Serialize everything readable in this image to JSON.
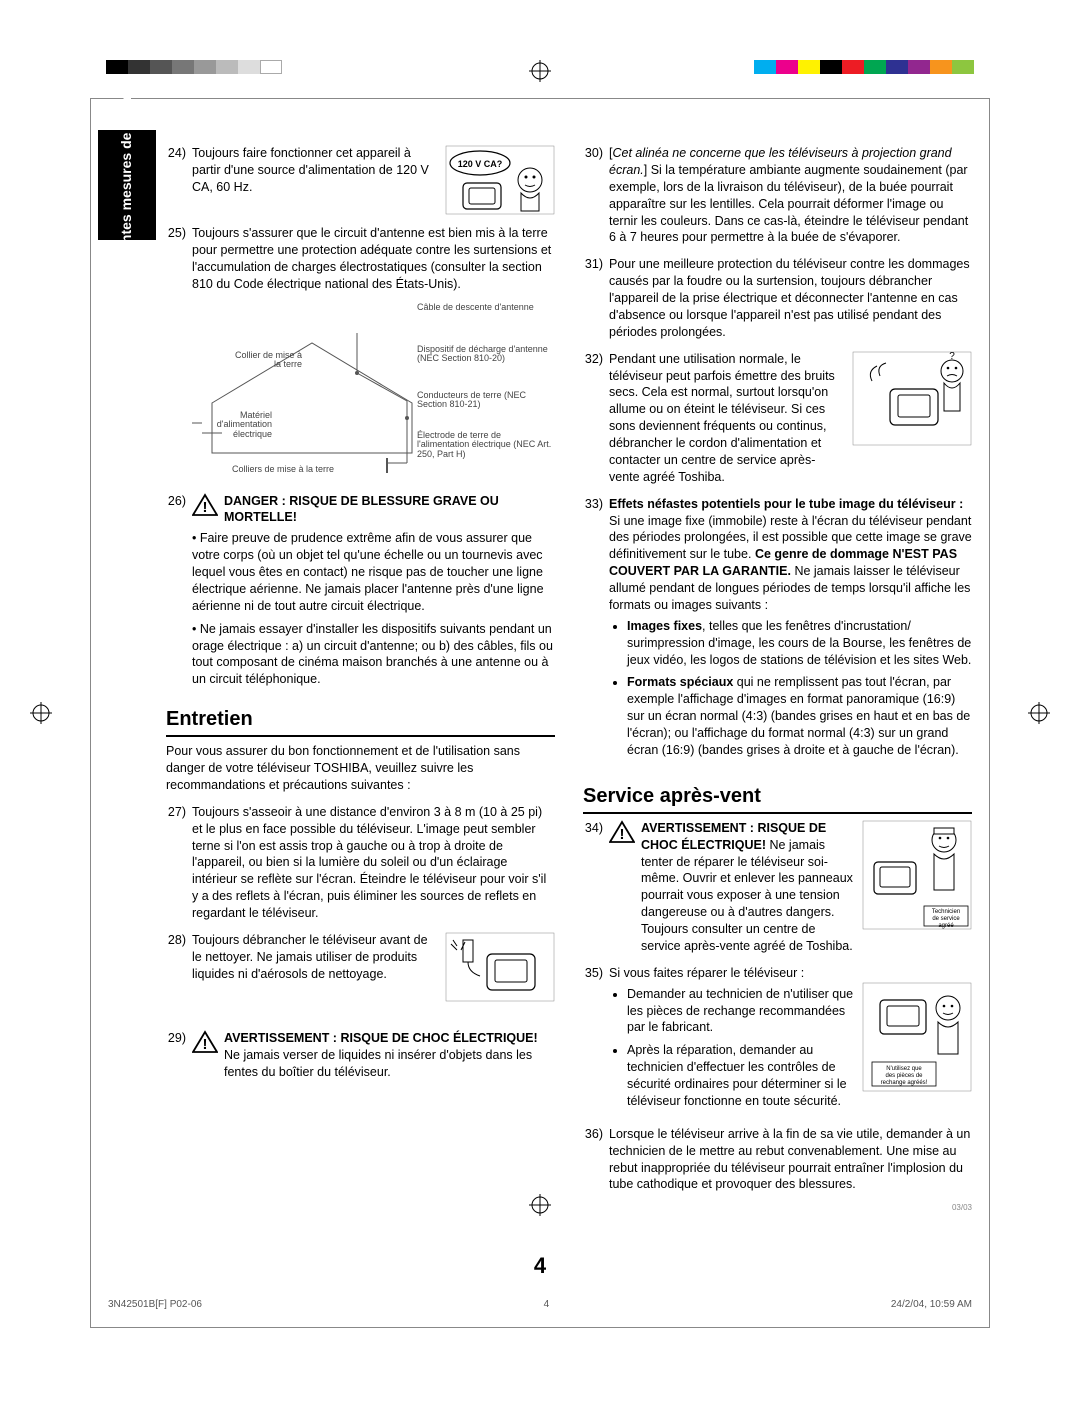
{
  "colorbar_left": [
    "#000000",
    "#333333",
    "#555555",
    "#777777",
    "#999999",
    "#bbbbbb",
    "#dddddd",
    "#ffffff"
  ],
  "colorbar_right": [
    "#00aeef",
    "#ec008c",
    "#fff200",
    "#000000",
    "#ed1c24",
    "#00a651",
    "#2e3192",
    "#92278f",
    "#f7941d",
    "#8dc63f"
  ],
  "tab": "Importantes\nmesures de\nsécurité",
  "items": {
    "i24": {
      "text": "Toujours faire fonctionner cet appareil à partir d'une source d'alimentation de 120 V CA, 60 Hz."
    },
    "i25": {
      "text": "Toujours s'assurer que le circuit d'antenne est bien mis à la terre pour permettre une protection adéquate contre les surtensions et l'accumulation de charges électrostatiques (consulter la section 810 du Code électrique national des États-Unis)."
    },
    "i26": {
      "heading": "DANGER : RISQUE DE BLESSURE GRAVE OU MORTELLE!",
      "p1": "• Faire preuve de prudence extrême afin de vous assurer que votre corps (où un objet tel qu'une échelle ou un tournevis avec lequel vous êtes en contact) ne risque pas de toucher une ligne électrique aérienne. Ne jamais placer l'antenne près d'une ligne aérienne ni de tout autre circuit électrique.",
      "p2": "• Ne jamais essayer d'installer les dispositifs suivants pendant un orage électrique : a) un circuit d'antenne; ou b) des câbles, fils ou tout composant de cinéma maison branchés à une antenne ou à un circuit téléphonique."
    },
    "i27": {
      "text": "Toujours s'asseoir à une distance d'environ 3 à 8 m (10 à 25 pi) et le plus en face possible du téléviseur. L'image peut sembler terne si l'on est assis trop à gauche ou à trop à droite de l'appareil, ou bien si la lumière du soleil ou d'un éclairage intérieur se reflète sur l'écran. Éteindre le téléviseur pour voir s'il y a des reflets à l'écran, puis éliminer les sources de reflets en regardant le téléviseur."
    },
    "i28": {
      "text": "Toujours débrancher le téléviseur avant de le nettoyer. Ne jamais utiliser de produits liquides ni d'aérosols de nettoyage."
    },
    "i29": {
      "heading": "AVERTISSEMENT : RISQUE DE CHOC ÉLECTRIQUE!",
      "text": "Ne jamais verser de liquides ni insérer d'objets dans les fentes du boîtier du téléviseur."
    },
    "i30": {
      "prefix_italic": "Cet alinéa ne concerne que les téléviseurs à projection grand écran.",
      "text": "Si la température ambiante augmente soudainement (par exemple, lors de la livraison du téléviseur), de la buée pourrait apparaître sur les lentilles. Cela pourrait déformer l'image ou ternir les couleurs. Dans ce cas-là, éteindre le téléviseur pendant 6 à 7 heures pour permettre à la buée de s'évaporer."
    },
    "i31": {
      "text": "Pour une meilleure protection du téléviseur contre les dommages causés par la foudre ou la surtension, toujours débrancher l'appareil de la prise électrique et déconnecter l'antenne en cas d'absence ou lorsque l'appareil n'est pas utilisé pendant des périodes prolongées."
    },
    "i32": {
      "text": "Pendant une utilisation normale, le téléviseur peut parfois émettre des bruits secs. Cela est normal, surtout lorsqu'on allume ou on éteint le téléviseur. Si ces sons deviennent fréquents ou continus, débrancher le cordon d'alimentation et contacter un centre de service après-vente agréé Toshiba."
    },
    "i33": {
      "lead_bold": "Effets néfastes potentiels pour le tube image du téléviseur :",
      "lead_text": "Si une image fixe (immobile) reste à l'écran du téléviseur pendant des périodes prolongées, il est possible que cette image se grave définitivement sur le tube.",
      "warranty_bold": "Ce genre de dommage N'EST PAS COUVERT PAR LA GARANTIE.",
      "tail": "Ne jamais laisser le téléviseur allumé pendant de longues périodes de temps lorsqu'il affiche les formats ou images suivants :",
      "bullets": [
        {
          "bold": "Images fixes",
          "text": ", telles que les fenêtres d'incrustation/ surimpression d'image, les cours de la Bourse, les fenêtres de jeux vidéo, les logos de stations de télévision et les sites Web."
        },
        {
          "bold": "Formats spéciaux",
          "text": " qui ne remplissent pas tout l'écran, par exemple l'affichage d'images en format panoramique (16:9) sur un écran normal (4:3) (bandes grises en haut et en bas de l'écran); ou l'affichage du format normal (4:3) sur un grand écran (16:9) (bandes grises à droite et à gauche de l'écran)."
        }
      ]
    },
    "i34": {
      "heading": "AVERTISSEMENT : RISQUE DE CHOC ÉLECTRIQUE!",
      "text": "Ne jamais tenter de réparer le téléviseur soi-même. Ouvrir et enlever les panneaux pourrait vous exposer à une tension dangereuse ou à d'autres dangers. Toujours consulter un centre de service après-vente agréé de Toshiba."
    },
    "i35": {
      "lead": "Si vous faites réparer le téléviseur :",
      "bullets": [
        "Demander au technicien de n'utiliser que les pièces de rechange recommandées par le fabricant.",
        "Après la réparation, demander au technicien d'effectuer les contrôles de sécurité ordinaires pour déterminer si le téléviseur fonctionne en toute sécurité."
      ]
    },
    "i36": {
      "text": "Lorsque le téléviseur arrive à la fin de sa vie utile, demander à un technicien de le mettre au rebut convenablement. Une mise au rebut inappropriée du téléviseur pourrait entraîner l'implosion du tube cathodique et provoquer des blessures."
    }
  },
  "sections": {
    "entretien": "Entretien",
    "entretien_intro": "Pour vous assurer du bon fonctionnement et de l'utilisation sans danger de votre téléviseur TOSHIBA, veuillez suivre les recommandations et précautions suivantes :",
    "service": "Service après-vent"
  },
  "diagram_labels": {
    "cable": "Câble de descente\nd'antenne",
    "collier": "Collier de mise\nà la terre",
    "dispositif": "Dispositif de décharge\nd'antenne\n(NEC Section 810-20)",
    "materiel": "Matériel d'alimentation\nélectrique",
    "conducteurs": "Conducteurs de terre\n(NEC Section 810-21)",
    "electrode": "Électrode de terre de\nl'alimentation électrique\n(NEC Art. 250, Part H)",
    "colliers": "Colliers de mise à la terre"
  },
  "illus_captions": {
    "i24": "120 V CA?",
    "i34": "Technicien\nde service\nagréé",
    "i35": "N'utilisez que\ndes pièces de\nrechange agréés!"
  },
  "page_number": "4",
  "footer_left": "3N42501B[F] P02-06",
  "footer_mid": "4",
  "footer_right": "24/2/04, 10:59 AM",
  "tiny": "03/03"
}
